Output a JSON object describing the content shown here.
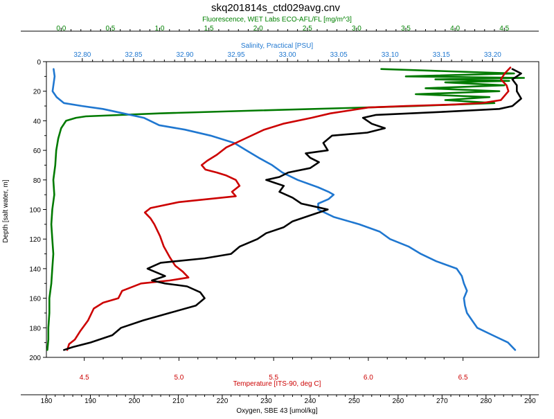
{
  "chart_data": {
    "type": "line",
    "title": "skq201814s_ctd029avg.cnv",
    "y_axis": {
      "label": "Depth [salt water, m]",
      "range": [
        0,
        200
      ],
      "inverted": true,
      "ticks": [
        0,
        20,
        40,
        60,
        80,
        100,
        120,
        140,
        160,
        180,
        200
      ]
    },
    "x_axes": [
      {
        "id": "fluorescence",
        "label": "Fluorescence, WET Labs ECO-AFL/FL [mg/m^3]",
        "position": "top-outer",
        "color": "#008000",
        "range": [
          -0.15,
          4.85
        ],
        "ticks": [
          "0.0",
          "0.5",
          "1.0",
          "1.5",
          "2.0",
          "2.5",
          "3.0",
          "3.5",
          "4.0",
          "4.5"
        ]
      },
      {
        "id": "salinity",
        "label": "Salinity, Practical [PSU]",
        "position": "top-inner",
        "color": "#1f77d0",
        "range": [
          32.765,
          33.245
        ],
        "ticks": [
          "32.80",
          "32.85",
          "32.90",
          "32.95",
          "33.00",
          "33.05",
          "33.10",
          "33.15",
          "33.20"
        ]
      },
      {
        "id": "temperature",
        "label": "Temperature [ITS-90, deg C]",
        "position": "bottom-inner",
        "color": "#cc0000",
        "range": [
          4.3,
          6.9
        ],
        "ticks": [
          "4.5",
          "5.0",
          "5.5",
          "6.0",
          "6.5"
        ]
      },
      {
        "id": "oxygen",
        "label": "Oxygen, SBE 43 [umol/kg]",
        "position": "bottom-outer",
        "color": "#000000",
        "range": [
          180,
          292
        ],
        "ticks": [
          "180",
          "190",
          "200",
          "210",
          "220",
          "230",
          "240",
          "250",
          "260",
          "270",
          "280",
          "290"
        ]
      }
    ],
    "series": [
      {
        "axis": "fluorescence",
        "color": "#007a00",
        "points": [
          [
            3.25,
            5
          ],
          [
            3.7,
            6
          ],
          [
            4.6,
            8
          ],
          [
            3.5,
            10
          ],
          [
            4.7,
            11
          ],
          [
            3.8,
            12
          ],
          [
            4.55,
            13
          ],
          [
            3.9,
            14
          ],
          [
            4.5,
            16
          ],
          [
            3.7,
            18
          ],
          [
            4.45,
            20
          ],
          [
            3.6,
            22
          ],
          [
            4.35,
            24
          ],
          [
            3.9,
            26
          ],
          [
            4.4,
            28
          ],
          [
            3.6,
            30
          ],
          [
            3.1,
            31
          ],
          [
            2.0,
            33
          ],
          [
            1.0,
            35
          ],
          [
            0.25,
            37
          ],
          [
            0.15,
            38
          ],
          [
            0.05,
            40
          ],
          [
            0.0,
            45
          ],
          [
            -0.03,
            52
          ],
          [
            -0.05,
            60
          ],
          [
            -0.06,
            70
          ],
          [
            -0.08,
            80
          ],
          [
            -0.07,
            90
          ],
          [
            -0.09,
            100
          ],
          [
            -0.1,
            110
          ],
          [
            -0.09,
            120
          ],
          [
            -0.08,
            130
          ],
          [
            -0.09,
            140
          ],
          [
            -0.1,
            150
          ],
          [
            -0.12,
            160
          ],
          [
            -0.12,
            170
          ],
          [
            -0.13,
            180
          ],
          [
            -0.13,
            188
          ],
          [
            -0.14,
            195
          ]
        ]
      },
      {
        "axis": "salinity",
        "color": "#1f77d0",
        "points": [
          [
            32.772,
            5
          ],
          [
            32.773,
            10
          ],
          [
            32.772,
            15
          ],
          [
            32.771,
            20
          ],
          [
            32.775,
            24
          ],
          [
            32.782,
            28
          ],
          [
            32.8,
            30
          ],
          [
            32.82,
            32
          ],
          [
            32.84,
            35
          ],
          [
            32.86,
            38
          ],
          [
            32.875,
            43
          ],
          [
            32.9,
            46
          ],
          [
            32.925,
            50
          ],
          [
            32.948,
            55
          ],
          [
            32.96,
            60
          ],
          [
            32.972,
            65
          ],
          [
            32.985,
            70
          ],
          [
            32.995,
            75
          ],
          [
            33.01,
            80
          ],
          [
            33.03,
            85
          ],
          [
            33.04,
            88
          ],
          [
            33.045,
            90
          ],
          [
            33.04,
            93
          ],
          [
            33.03,
            96
          ],
          [
            33.03,
            100
          ],
          [
            33.045,
            105
          ],
          [
            33.07,
            110
          ],
          [
            33.09,
            115
          ],
          [
            33.1,
            120
          ],
          [
            33.118,
            125
          ],
          [
            33.13,
            130
          ],
          [
            33.145,
            135
          ],
          [
            33.165,
            140
          ],
          [
            33.17,
            145
          ],
          [
            33.172,
            150
          ],
          [
            33.175,
            155
          ],
          [
            33.172,
            160
          ],
          [
            33.173,
            165
          ],
          [
            33.175,
            170
          ],
          [
            33.18,
            175
          ],
          [
            33.185,
            180
          ],
          [
            33.2,
            185
          ],
          [
            33.215,
            190
          ],
          [
            33.222,
            195
          ]
        ]
      },
      {
        "axis": "temperature",
        "color": "#cc0000",
        "points": [
          [
            6.75,
            4
          ],
          [
            6.72,
            8
          ],
          [
            6.7,
            12
          ],
          [
            6.73,
            16
          ],
          [
            6.74,
            20
          ],
          [
            6.7,
            26
          ],
          [
            6.6,
            28
          ],
          [
            6.45,
            29
          ],
          [
            6.2,
            30
          ],
          [
            6.0,
            31
          ],
          [
            5.9,
            33
          ],
          [
            5.8,
            35
          ],
          [
            5.7,
            38
          ],
          [
            5.55,
            42
          ],
          [
            5.45,
            46
          ],
          [
            5.35,
            52
          ],
          [
            5.25,
            58
          ],
          [
            5.2,
            63
          ],
          [
            5.15,
            67
          ],
          [
            5.12,
            70
          ],
          [
            5.14,
            73
          ],
          [
            5.2,
            75
          ],
          [
            5.25,
            77
          ],
          [
            5.3,
            80
          ],
          [
            5.32,
            84
          ],
          [
            5.28,
            88
          ],
          [
            5.3,
            91
          ],
          [
            5.15,
            93
          ],
          [
            5.0,
            95
          ],
          [
            4.85,
            99
          ],
          [
            4.82,
            102
          ],
          [
            4.85,
            106
          ],
          [
            4.87,
            110
          ],
          [
            4.9,
            118
          ],
          [
            4.92,
            125
          ],
          [
            4.95,
            132
          ],
          [
            4.98,
            138
          ],
          [
            5.02,
            142
          ],
          [
            5.05,
            146
          ],
          [
            4.95,
            148
          ],
          [
            4.8,
            150
          ],
          [
            4.7,
            155
          ],
          [
            4.68,
            160
          ],
          [
            4.6,
            163
          ],
          [
            4.55,
            167
          ],
          [
            4.52,
            175
          ],
          [
            4.48,
            182
          ],
          [
            4.45,
            188
          ],
          [
            4.42,
            191
          ],
          [
            4.41,
            195
          ]
        ]
      },
      {
        "axis": "oxygen",
        "color": "#000000",
        "points": [
          [
            286,
            5
          ],
          [
            288,
            8
          ],
          [
            286,
            12
          ],
          [
            287,
            16
          ],
          [
            287,
            20
          ],
          [
            288,
            25
          ],
          [
            286,
            30
          ],
          [
            283,
            32
          ],
          [
            270,
            34
          ],
          [
            255,
            36
          ],
          [
            252,
            38
          ],
          [
            254,
            42
          ],
          [
            257,
            45
          ],
          [
            253,
            48
          ],
          [
            245,
            50
          ],
          [
            243,
            55
          ],
          [
            244,
            60
          ],
          [
            239,
            62
          ],
          [
            240,
            65
          ],
          [
            242,
            68
          ],
          [
            240,
            72
          ],
          [
            235,
            75
          ],
          [
            233,
            78
          ],
          [
            230,
            80
          ],
          [
            232,
            82
          ],
          [
            234,
            84
          ],
          [
            233,
            88
          ],
          [
            236,
            92
          ],
          [
            238,
            96
          ],
          [
            241,
            98
          ],
          [
            244,
            100
          ],
          [
            240,
            104
          ],
          [
            236,
            108
          ],
          [
            234,
            112
          ],
          [
            230,
            116
          ],
          [
            228,
            120
          ],
          [
            224,
            125
          ],
          [
            222,
            130
          ],
          [
            216,
            133
          ],
          [
            206,
            136
          ],
          [
            203,
            140
          ],
          [
            207,
            145
          ],
          [
            204,
            148
          ],
          [
            207,
            150
          ],
          [
            212,
            152
          ],
          [
            215,
            156
          ],
          [
            216,
            160
          ],
          [
            214,
            165
          ],
          [
            208,
            170
          ],
          [
            202,
            175
          ],
          [
            197,
            180
          ],
          [
            195,
            185
          ],
          [
            190,
            190
          ],
          [
            186,
            193
          ],
          [
            184,
            195
          ]
        ]
      }
    ]
  }
}
